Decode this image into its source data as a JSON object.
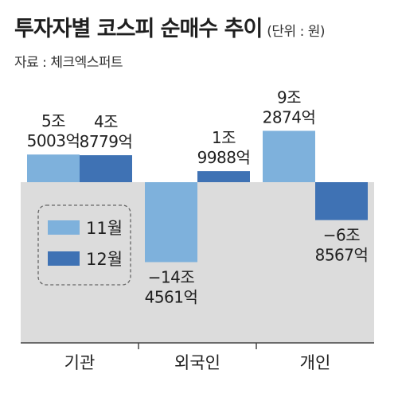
{
  "title": "투자자별 코스피 순매수 추이",
  "unit": "(단위 : 원)",
  "source": "자료 : 체크엑스퍼트",
  "colors": {
    "nov": "#7eb1dc",
    "dec": "#3f72b4",
    "bg": "#dcdcdc"
  },
  "chart_data": {
    "type": "bar",
    "categories": [
      "기관",
      "외국인",
      "개인"
    ],
    "series": [
      {
        "name": "11월",
        "values": [
          5.0003,
          -14.4561,
          9.2874
        ],
        "labels": [
          [
            "5조",
            "5003억"
          ],
          [
            "−14조",
            "4561억"
          ],
          [
            "9조",
            "2874억"
          ]
        ]
      },
      {
        "name": "12월",
        "values": [
          4.8779,
          1.9988,
          -6.8567
        ],
        "labels": [
          [
            "4조",
            "8779억"
          ],
          [
            "1조",
            "9988억"
          ],
          [
            "−6조",
            "8567억"
          ]
        ]
      }
    ],
    "ylabel": "",
    "unit_scale": "조원",
    "legend_position": "center-left"
  }
}
